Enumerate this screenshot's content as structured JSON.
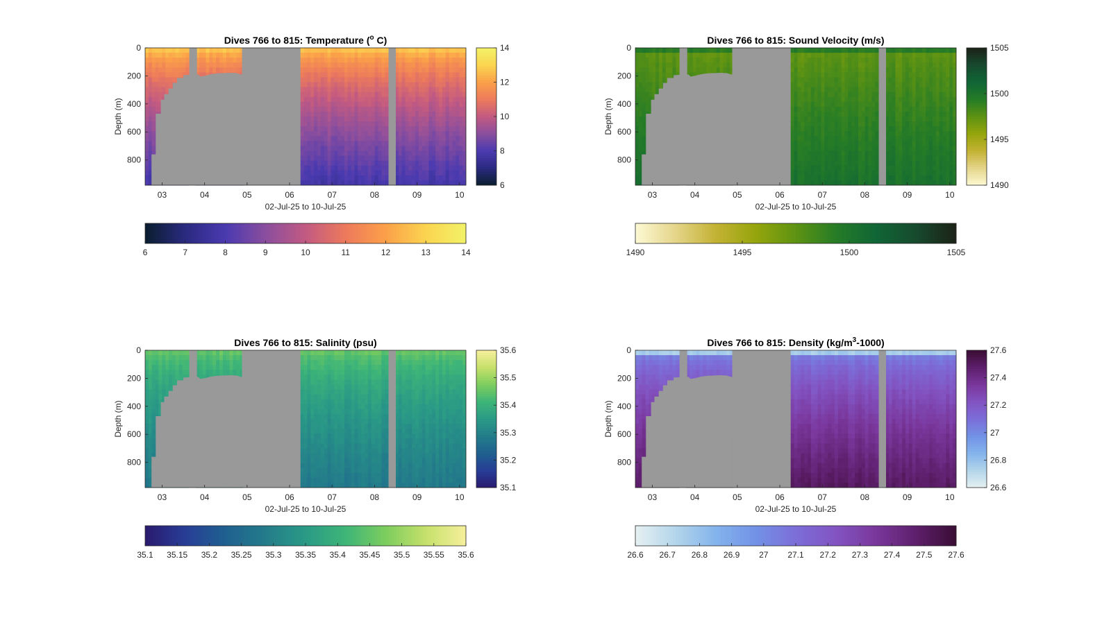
{
  "figure": {
    "background": "#ffffff",
    "no_data_color": "#999999",
    "x_tick_labels": [
      "03",
      "04",
      "05",
      "06",
      "07",
      "08",
      "09",
      "10"
    ],
    "x_range_days": [
      2.6,
      10.15
    ],
    "x_tick_days": [
      3,
      4,
      5,
      6,
      7,
      8,
      9,
      10
    ],
    "y_range": [
      0,
      980
    ],
    "y_ticks": [
      0,
      200,
      400,
      600,
      800
    ],
    "y_reversed": true
  },
  "chart_data": [
    {
      "type": "heatmap",
      "id": "temperature",
      "title": "Dives 766 to 815: Temperature (",
      "title_sup": "o",
      "title_end": " C)",
      "xlabel": "02-Jul-25 to 10-Jul-25",
      "ylabel": "Depth (m)",
      "colormap": [
        "#0a1e2e",
        "#2a2a80",
        "#4a3ab0",
        "#8a4e9e",
        "#c25a82",
        "#ec7a5c",
        "#fba049",
        "#fbd450",
        "#f2f268"
      ],
      "clim": [
        6,
        14
      ],
      "surface_value": 13.2,
      "deep_value": 7.8,
      "colorbar_right_ticks": [
        6,
        8,
        10,
        12,
        14
      ],
      "colorbar_right_tick_labels": [
        "6",
        "8",
        "10",
        "12",
        "14"
      ],
      "colorbar_bottom_ticks": [
        6,
        7,
        8,
        9,
        10,
        11,
        12,
        13,
        14
      ],
      "colorbar_bottom_tick_labels": [
        "6",
        "7",
        "8",
        "9",
        "10",
        "11",
        "12",
        "13",
        "14"
      ]
    },
    {
      "type": "heatmap",
      "id": "sound-velocity",
      "title": "Dives 766 to 815: Sound Velocity (m/s)",
      "xlabel": "02-Jul-25 to 10-Jul-25",
      "ylabel": "Depth (m)",
      "colormap": [
        "#fdf9d4",
        "#e4d58a",
        "#c4b234",
        "#95a50c",
        "#5e9313",
        "#267c26",
        "#106636",
        "#174a2e",
        "#1c2217"
      ],
      "clim": [
        1490,
        1505
      ],
      "surface_value": 1497.2,
      "deep_value": 1500.6,
      "colorbar_right_ticks": [
        1490,
        1495,
        1500,
        1505
      ],
      "colorbar_right_tick_labels": [
        "1490",
        "1495",
        "1500",
        "1505"
      ],
      "colorbar_bottom_ticks": [
        1490,
        1495,
        1500,
        1505
      ],
      "colorbar_bottom_tick_labels": [
        "1490",
        "1495",
        "1500",
        "1505"
      ]
    },
    {
      "type": "heatmap",
      "id": "salinity",
      "title": "Dives 766 to 815: Salinity (psu)",
      "xlabel": "02-Jul-25 to 10-Jul-25",
      "ylabel": "Depth (m)",
      "colormap": [
        "#2a1a6e",
        "#283d96",
        "#1f6090",
        "#237c8a",
        "#2a9a86",
        "#3eb578",
        "#7ccd5e",
        "#c6e06a",
        "#f6ef9c"
      ],
      "clim": [
        35.1,
        35.6
      ],
      "surface_value": 35.47,
      "deep_value": 35.28,
      "colorbar_right_ticks": [
        35.1,
        35.2,
        35.3,
        35.4,
        35.5,
        35.6
      ],
      "colorbar_right_tick_labels": [
        "35.1",
        "35.2",
        "35.3",
        "35.4",
        "35.5",
        "35.6"
      ],
      "colorbar_bottom_ticks": [
        35.1,
        35.15,
        35.2,
        35.25,
        35.3,
        35.35,
        35.4,
        35.45,
        35.5,
        35.55,
        35.6
      ],
      "colorbar_bottom_tick_labels": [
        "35.1",
        "35.15",
        "35.2",
        "35.25",
        "35.3",
        "35.35",
        "35.4",
        "35.45",
        "35.5",
        "35.55",
        "35.6"
      ]
    },
    {
      "type": "heatmap",
      "id": "density",
      "title": "Dives 766 to 815: Density (kg/m",
      "title_sup": "3",
      "title_end": "-1000)",
      "xlabel": "02-Jul-25 to 10-Jul-25",
      "ylabel": "Depth (m)",
      "colormap": [
        "#e6f1f2",
        "#b3d5ea",
        "#84b4ec",
        "#7292e6",
        "#7c6ed8",
        "#8254c2",
        "#7a379c",
        "#5e1f6c",
        "#3a0d34"
      ],
      "clim": [
        26.6,
        27.6
      ],
      "surface_value": 26.95,
      "deep_value": 27.5,
      "colorbar_right_ticks": [
        26.6,
        26.8,
        27.0,
        27.2,
        27.4,
        27.6
      ],
      "colorbar_right_tick_labels": [
        "26.6",
        "26.8",
        "27",
        "27.2",
        "27.4",
        "27.6"
      ],
      "colorbar_bottom_ticks": [
        26.6,
        26.7,
        26.8,
        26.9,
        27.0,
        27.1,
        27.2,
        27.3,
        27.4,
        27.5,
        27.6
      ],
      "colorbar_bottom_tick_labels": [
        "26.6",
        "26.7",
        "26.8",
        "26.9",
        "27",
        "27.1",
        "27.2",
        "27.3",
        "27.4",
        "27.5",
        "27.6"
      ]
    }
  ]
}
